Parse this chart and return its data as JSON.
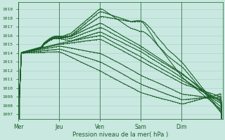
{
  "xlabel": "Pression niveau de la mer( hPa )",
  "ylim": [
    1006.5,
    1019.8
  ],
  "yticks": [
    1007,
    1008,
    1009,
    1010,
    1011,
    1012,
    1013,
    1014,
    1015,
    1016,
    1017,
    1018,
    1019
  ],
  "day_labels": [
    "Mer",
    "Jeu",
    "Ven",
    "Sam",
    "Dim"
  ],
  "day_positions": [
    0,
    0.2,
    0.4,
    0.6,
    0.8
  ],
  "bg_color": "#c8e8e0",
  "grid_color": "#a8cfc8",
  "line_color": "#1a5e28",
  "figsize": [
    3.2,
    2.0
  ],
  "dpi": 100
}
